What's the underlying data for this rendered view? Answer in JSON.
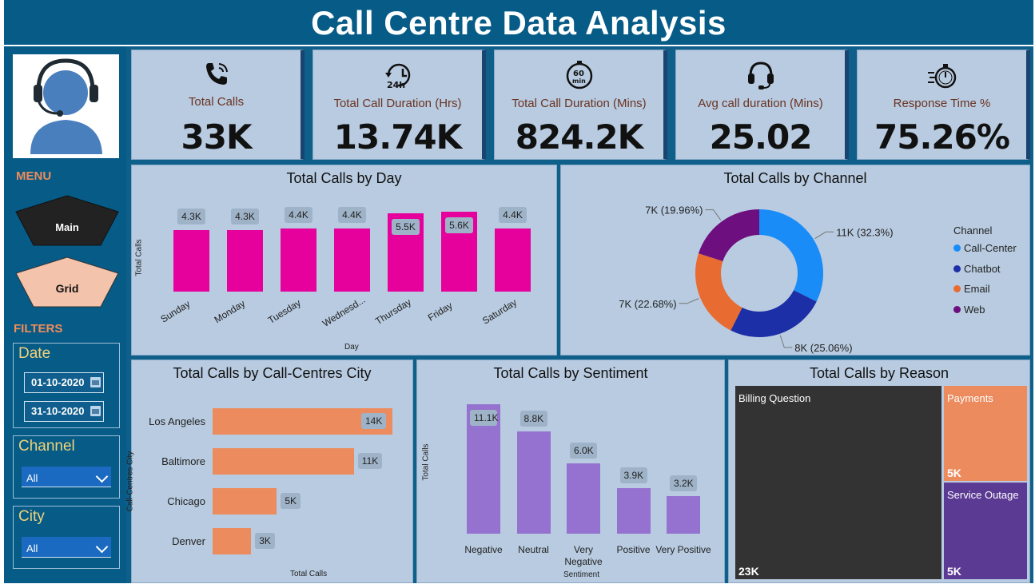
{
  "title": "Call Centre Data Analysis",
  "sidebar": {
    "menu_heading": "MENU",
    "menu_buttons": [
      {
        "label": "Main"
      },
      {
        "label": "Grid"
      }
    ],
    "filters_heading": "FILTERS",
    "date": {
      "title": "Date",
      "start": "01-10-2020",
      "end": "31-10-2020"
    },
    "channel": {
      "title": "Channel",
      "value": "All"
    },
    "city": {
      "title": "City",
      "value": "All"
    }
  },
  "kpis": [
    {
      "icon": "phone-icon",
      "label": "Total Calls",
      "value": "33K"
    },
    {
      "icon": "24h-clock-icon",
      "label": "Total Call Duration (Hrs)",
      "value": "13.74K"
    },
    {
      "icon": "60-min-timer-icon",
      "label": "Total Call Duration (Mins)",
      "value": "824.2K"
    },
    {
      "icon": "headset-icon",
      "label": "Avg call duration (Mins)",
      "value": "25.02"
    },
    {
      "icon": "stopwatch-icon",
      "label": "Response Time %",
      "value": "75.26%"
    }
  ],
  "colors": {
    "header": "#065b87",
    "panel": "#b8cbe0",
    "magenta": "#e6019d",
    "orange": "#ec8b5e",
    "purple": "#9572cf",
    "call_center": "#1a8cf7",
    "chatbot": "#1c2fa6",
    "email": "#e86b31",
    "web": "#6d0f7e"
  },
  "chart_data": [
    {
      "type": "bar",
      "title": "Total Calls by Day",
      "xlabel": "Day",
      "ylabel": "Total Calls",
      "categories": [
        "Sunday",
        "Monday",
        "Tuesday",
        "Wednesd...",
        "Thursday",
        "Friday",
        "Saturday"
      ],
      "values": [
        4300,
        4300,
        4400,
        4400,
        5500,
        5600,
        4400
      ],
      "data_labels": [
        "4.3K",
        "4.3K",
        "4.4K",
        "4.4K",
        "5.5K",
        "5.6K",
        "4.4K"
      ]
    },
    {
      "type": "pie",
      "title": "Total Calls by Channel",
      "legend_title": "Channel",
      "legend_position": "right",
      "categories": [
        "Call-Center",
        "Chatbot",
        "Email",
        "Web"
      ],
      "values": [
        32.3,
        25.06,
        22.68,
        19.96
      ],
      "data_labels": [
        "11K (32.3%)",
        "8K (25.06%)",
        "7K (22.68%)",
        "7K (19.96%)"
      ]
    },
    {
      "type": "bar",
      "title": "Total Calls by Call-Centres City",
      "xlabel": "Total Calls",
      "ylabel": "Call-Centres City",
      "categories": [
        "Los Angeles",
        "Baltimore",
        "Chicago",
        "Denver"
      ],
      "values": [
        14000,
        11000,
        5000,
        3000
      ],
      "data_labels": [
        "14K",
        "11K",
        "5K",
        "3K"
      ]
    },
    {
      "type": "bar",
      "title": "Total Calls by Sentiment",
      "xlabel": "Sentiment",
      "ylabel": "Total Calls",
      "categories": [
        "Negative",
        "Neutral",
        "Very Negative",
        "Positive",
        "Very Positive"
      ],
      "values": [
        11100,
        8800,
        6000,
        3900,
        3200
      ],
      "data_labels": [
        "11.1K",
        "8.8K",
        "6.0K",
        "3.9K",
        "3.2K"
      ]
    },
    {
      "type": "treemap",
      "title": "Total Calls by Reason",
      "categories": [
        "Billing Question",
        "Payments",
        "Service Outage"
      ],
      "values": [
        23000,
        5000,
        5000
      ],
      "data_labels": [
        "23K",
        "5K",
        "5K"
      ]
    }
  ]
}
